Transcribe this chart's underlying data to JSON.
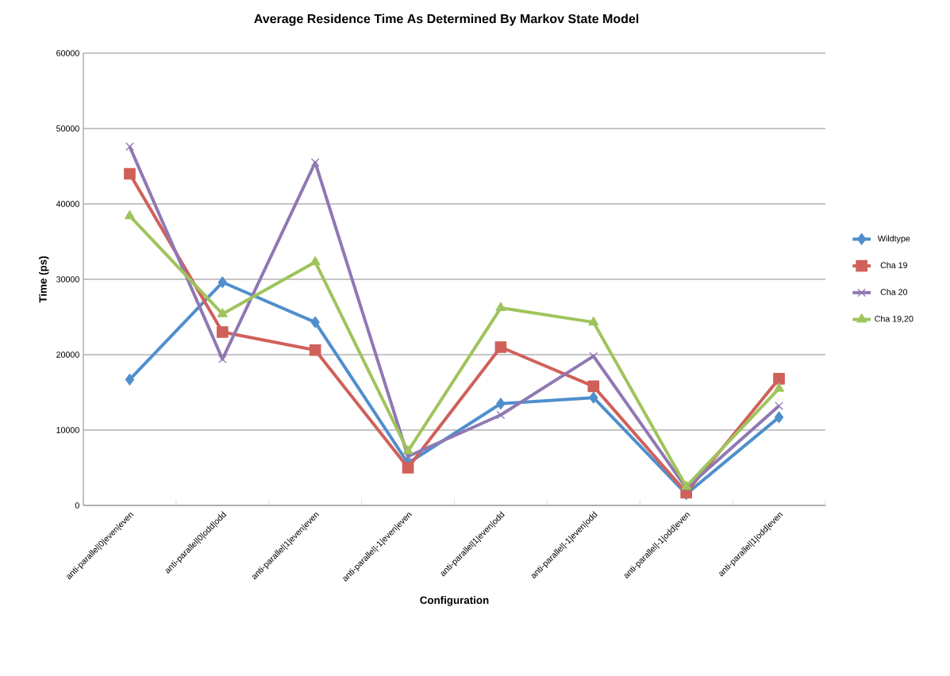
{
  "chart_data": {
    "type": "line",
    "title": "Average Residence Time As Determined By Markov State Model",
    "xlabel": "Configuration",
    "ylabel": "Time (ps)",
    "categories": [
      "anti-parallel|0|even|even",
      "anti-parallel|0|odd|odd",
      "anti-parallel|1|even|even",
      "anti-parallel|-1|even|even",
      "anti-parallel|1|even|odd",
      "anti-parallel|-1|even|odd",
      "anti-parallel|-1|odd|even",
      "anti-parallel|1|odd|even"
    ],
    "series": [
      {
        "name": "Wildtype",
        "color": "#4f8fcc",
        "marker": "diamond",
        "values": [
          16700,
          29600,
          24300,
          5600,
          13500,
          14300,
          1500,
          11700
        ]
      },
      {
        "name": "Cha 19",
        "color": "#d0605a",
        "marker": "square",
        "values": [
          44000,
          23000,
          20600,
          5000,
          21000,
          15800,
          1700,
          16800
        ]
      },
      {
        "name": "Cha 20",
        "color": "#8f78b3",
        "marker": "cross",
        "values": [
          47600,
          19400,
          45500,
          6500,
          12000,
          19800,
          2300,
          13200
        ]
      },
      {
        "name": "Cha 19,20",
        "color": "#9fc45c",
        "marker": "triangle",
        "values": [
          38400,
          25400,
          32300,
          7200,
          26200,
          24300,
          2500,
          15500
        ]
      }
    ],
    "ylim": [
      0,
      60000
    ],
    "yticks": [
      0,
      10000,
      20000,
      30000,
      40000,
      50000,
      60000
    ],
    "grid": "y",
    "legend": "right"
  }
}
